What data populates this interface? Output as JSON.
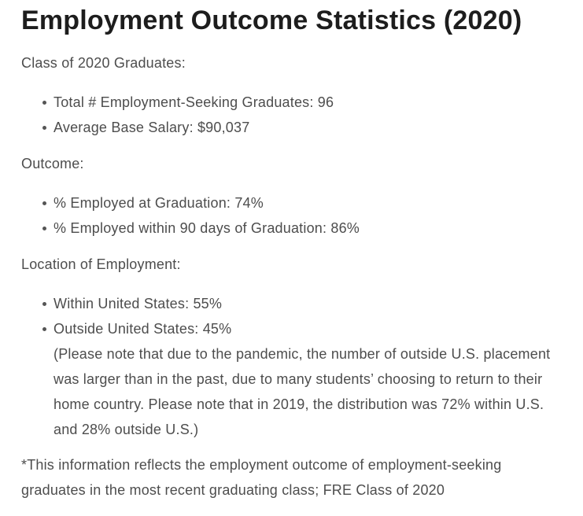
{
  "page": {
    "title": "Employment Outcome Statistics (2020)",
    "colors": {
      "title_text": "#1d1d1d",
      "body_text": "#4d4d4d",
      "background": "#ffffff"
    },
    "sections": [
      {
        "heading": "Class of 2020 Graduates:",
        "items": [
          "Total # Employment-Seeking Graduates: 96",
          "Average Base Salary: $90,037"
        ]
      },
      {
        "heading": "Outcome:",
        "items": [
          "% Employed at Graduation: 74%",
          "% Employed within 90 days of Graduation: 86%"
        ]
      },
      {
        "heading": "Location of Employment:",
        "items": [
          "Within United States: 55%",
          "Outside United States: 45%"
        ],
        "note": "(Please note that due to the pandemic, the number of outside U.S. placement was larger than in the past, due to many students’ choosing to return to their home country. Please note that in 2019, the distribution was 72% within U.S. and 28% outside U.S.)"
      }
    ],
    "footnote": "*This information reflects the employment outcome of employment-seeking graduates in the most recent graduating class; FRE Class of 2020"
  }
}
